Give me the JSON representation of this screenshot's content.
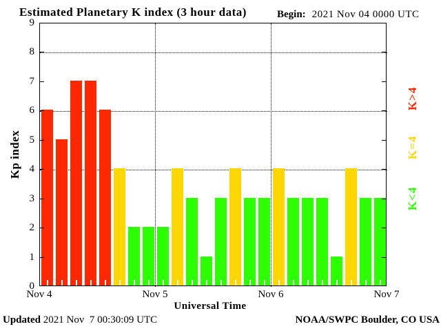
{
  "title": "Estimated Planetary K index (3 hour data)",
  "begin": {
    "label": "Begin:",
    "value": "2021 Nov 04 0000 UTC"
  },
  "footer": {
    "updated_label": "Updated",
    "updated_value": " 2021 Nov  7 00:30:09 UTC",
    "source": "NOAA/SWPC Boulder, CO USA"
  },
  "chart_data": {
    "type": "bar",
    "title": "Estimated Planetary K index (3 hour data)",
    "xlabel": "Universal Time",
    "ylabel": "Kp index",
    "ylim": [
      0,
      9
    ],
    "yticks": [
      0,
      1,
      2,
      3,
      4,
      5,
      6,
      7,
      8,
      9
    ],
    "grid_y": [
      4,
      6,
      8
    ],
    "grid": "dotted",
    "interval_hours": 3,
    "bars_per_day": 8,
    "x_day_labels": [
      "Nov 4",
      "Nov 5",
      "Nov 6",
      "Nov 7"
    ],
    "series": [
      {
        "day": "Nov 4",
        "values": [
          6,
          5,
          7,
          7,
          6,
          4,
          2,
          2
        ]
      },
      {
        "day": "Nov 5",
        "values": [
          2,
          4,
          3,
          1,
          3,
          4,
          3,
          3
        ]
      },
      {
        "day": "Nov 6",
        "values": [
          4,
          3,
          3,
          3,
          1,
          4,
          3,
          3
        ]
      }
    ],
    "values": [
      6,
      5,
      7,
      7,
      6,
      4,
      2,
      2,
      2,
      4,
      3,
      1,
      3,
      4,
      3,
      3,
      4,
      3,
      3,
      3,
      1,
      4,
      3,
      3
    ],
    "colors": {
      "above4": "#ff2800",
      "equal4": "#ffd700",
      "below4": "#2bff00"
    },
    "legend": [
      {
        "label": "K>4",
        "color": "#ff2800"
      },
      {
        "label": "K=4",
        "color": "#ffd700"
      },
      {
        "label": "K<4",
        "color": "#2bff00"
      }
    ],
    "legend_position": "right"
  }
}
